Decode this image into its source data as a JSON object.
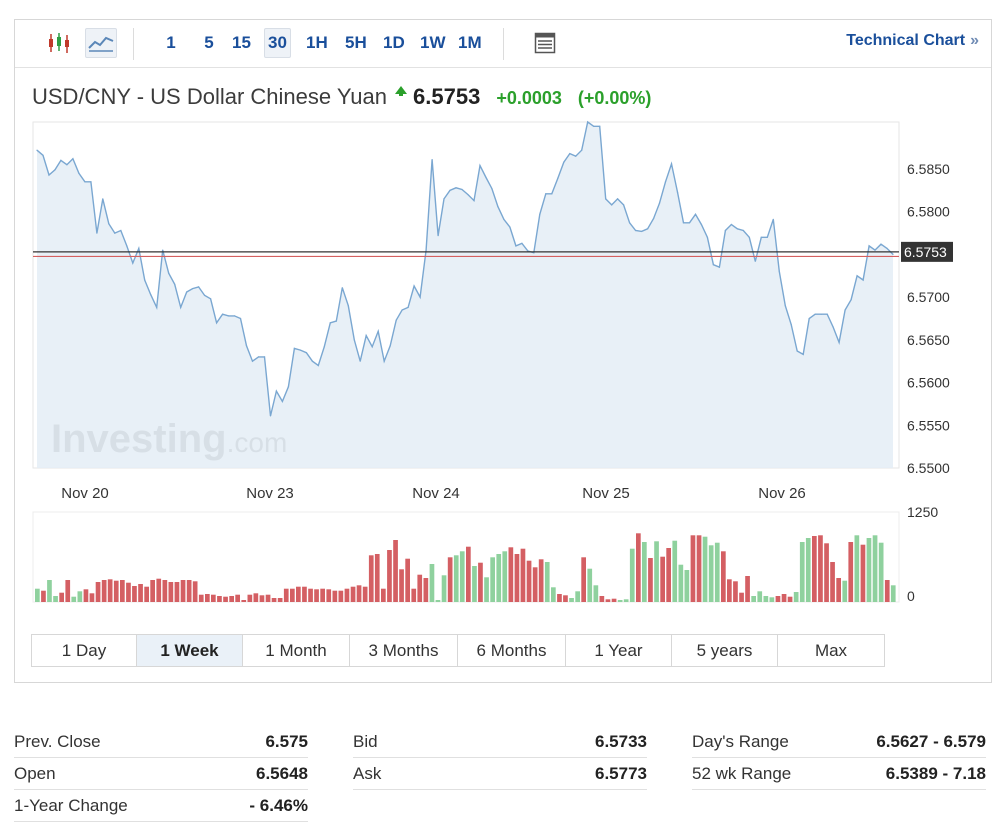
{
  "toolbar": {
    "chart_type_icons": [
      "candlestick-icon",
      "line-chart-icon"
    ],
    "intervals": [
      "1",
      "5",
      "15",
      "30",
      "1H",
      "5H",
      "1D",
      "1W",
      "1M"
    ],
    "active_interval": "30",
    "table_icon": "table-icon",
    "technical_link": "Technical Chart",
    "technical_arrow": "»"
  },
  "instrument": {
    "name": "USD/CNY - US Dollar Chinese Yuan",
    "direction_icon": "up-arrow-icon",
    "price": "6.5753",
    "change": "+0.0003",
    "change_pct": "(+0.00%)"
  },
  "colors": {
    "line": "#7aa7d1",
    "area": "#e4edf6",
    "up_volume": "#8fd19e",
    "down_volume": "#d45f63",
    "price_label_bg": "#333333",
    "positive": "#2ba02b",
    "link": "#1a4f9b"
  },
  "watermark": "Investing.com",
  "chart_data": {
    "type": "area",
    "y_ticks": [
      "6.5850",
      "6.5800",
      "6.5700",
      "6.5650",
      "6.5600",
      "6.5550",
      "6.5500"
    ],
    "ylim": [
      6.55,
      6.5905
    ],
    "x_ticks": [
      "Nov 20",
      "Nov 23",
      "Nov 24",
      "Nov 25",
      "Nov 26"
    ],
    "current_price_label": "6.5753",
    "current_price": 6.5753,
    "previous_close": 6.575,
    "series": [
      {
        "values": [
          6.5872,
          6.5866,
          6.5843,
          6.5849,
          6.586,
          6.5855,
          6.5862,
          6.5845,
          6.5835,
          6.5835,
          6.5775,
          6.5815,
          6.5786,
          6.5775,
          6.5778,
          6.576,
          6.574,
          6.5757,
          6.572,
          6.5703,
          6.5688,
          6.5755,
          6.5728,
          6.5715,
          6.5688,
          6.5706,
          6.571,
          6.5712,
          6.5702,
          6.5698,
          6.567,
          6.568,
          6.5678,
          6.5678,
          6.5675,
          6.5643,
          6.5625,
          6.563,
          6.563,
          6.5561,
          6.559,
          6.5578,
          6.5595,
          6.564,
          6.5638,
          6.5635,
          6.5625,
          6.562,
          6.5642,
          6.567,
          6.5672,
          6.5711,
          6.569,
          6.565,
          6.5625,
          6.5655,
          6.5642,
          6.566,
          6.5625,
          6.5643,
          6.5673,
          6.5685,
          6.5688,
          6.5713,
          6.57,
          6.5755,
          6.5861,
          6.5772,
          6.5815,
          6.5825,
          6.5828,
          6.5826,
          6.582,
          6.5813,
          6.5854,
          6.584,
          6.5827,
          6.5806,
          6.5791,
          6.5782,
          6.576,
          6.5763,
          6.5754,
          6.5752,
          6.5797,
          6.5821,
          6.5821,
          6.5839,
          6.5858,
          6.5868,
          6.5865,
          6.5872,
          6.5905,
          6.59,
          6.59,
          6.5815,
          6.5808,
          6.5815,
          6.5808,
          6.5787,
          6.5778,
          6.5777,
          6.578,
          6.5792,
          6.581,
          6.5835,
          6.5856,
          6.5823,
          6.5787,
          6.5787,
          6.5797,
          6.5785,
          6.577,
          6.5738,
          6.5735,
          6.5778,
          6.5785,
          6.578,
          6.5778,
          6.577,
          6.5742,
          6.577,
          6.577,
          6.5791,
          6.573,
          6.569,
          6.5668,
          6.5637,
          6.5633,
          6.5675,
          6.568,
          6.568,
          6.568,
          6.5665,
          6.5647,
          6.5685,
          6.5697,
          6.5725,
          6.572,
          6.576,
          6.5755,
          6.5762,
          6.5757,
          6.575
        ]
      }
    ],
    "volume": {
      "y_ticks": [
        "1250",
        "0"
      ],
      "ylim": [
        0,
        1350
      ],
      "up": [
        1,
        0,
        1,
        1,
        0,
        0,
        1,
        1,
        0,
        0,
        0,
        0,
        0,
        0,
        0,
        0,
        0,
        0,
        0,
        0,
        0,
        0,
        0,
        0,
        0,
        0,
        0,
        0,
        0,
        0,
        0,
        0,
        0,
        0,
        0,
        0,
        0,
        0,
        0,
        0,
        0,
        0,
        0,
        0,
        0,
        0,
        0,
        0,
        0,
        0,
        0,
        0,
        0,
        0,
        0,
        0,
        0,
        0,
        0,
        0,
        0,
        0,
        0,
        0,
        0,
        1,
        1,
        1,
        0,
        1,
        1,
        0,
        1,
        0,
        1,
        1,
        1,
        1,
        0,
        0,
        0,
        0,
        0,
        0,
        1,
        1,
        0,
        0,
        1,
        1,
        0,
        1,
        1,
        0,
        0,
        0,
        1,
        1,
        1,
        0,
        1,
        0,
        1,
        0,
        0,
        1,
        1,
        1,
        0,
        0,
        1,
        1,
        1,
        0,
        0,
        0,
        0,
        0,
        1,
        1,
        1,
        1,
        0,
        0,
        0,
        1,
        1,
        1,
        0,
        0,
        0,
        0,
        0,
        1,
        0,
        1,
        0,
        1,
        1,
        1,
        0,
        1,
        0
      ],
      "values": [
        200,
        170,
        330,
        90,
        140,
        330,
        80,
        160,
        190,
        130,
        300,
        330,
        340,
        320,
        330,
        290,
        240,
        270,
        230,
        330,
        350,
        330,
        300,
        300,
        330,
        330,
        310,
        110,
        120,
        110,
        90,
        80,
        90,
        110,
        30,
        110,
        130,
        100,
        110,
        60,
        60,
        200,
        200,
        230,
        230,
        200,
        190,
        200,
        190,
        170,
        170,
        200,
        230,
        250,
        230,
        700,
        720,
        200,
        780,
        930,
        490,
        650,
        200,
        410,
        360,
        570,
        30,
        400,
        670,
        700,
        760,
        830,
        540,
        590,
        370,
        670,
        720,
        760,
        820,
        720,
        800,
        620,
        520,
        640,
        600,
        220,
        120,
        100,
        60,
        160,
        670,
        500,
        250,
        90,
        40,
        50,
        30,
        40,
        800,
        1030,
        900,
        660,
        910,
        680,
        810,
        920,
        560,
        480,
        1000,
        1000,
        980,
        850,
        890,
        760,
        340,
        310,
        140,
        390,
        90,
        160,
        90,
        70,
        90,
        120,
        80,
        150,
        900,
        960,
        990,
        1000,
        880,
        600,
        360,
        320,
        900,
        1000,
        860,
        960,
        1000,
        890,
        330,
        250
      ]
    }
  },
  "ranges": [
    "1 Day",
    "1 Week",
    "1 Month",
    "3 Months",
    "6 Months",
    "1 Year",
    "5 years",
    "Max"
  ],
  "active_range": "1 Week",
  "stats": {
    "col1": [
      {
        "label": "Prev. Close",
        "value": "6.575"
      },
      {
        "label": "Open",
        "value": "6.5648"
      },
      {
        "label": "1-Year Change",
        "value": "- 6.46%"
      }
    ],
    "col2": [
      {
        "label": "Bid",
        "value": "6.5733"
      },
      {
        "label": "Ask",
        "value": "6.5773"
      }
    ],
    "col3": [
      {
        "label": "Day's Range",
        "value": "6.5627 - 6.579"
      },
      {
        "label": "52 wk Range",
        "value": "6.5389 - 7.18"
      }
    ]
  }
}
